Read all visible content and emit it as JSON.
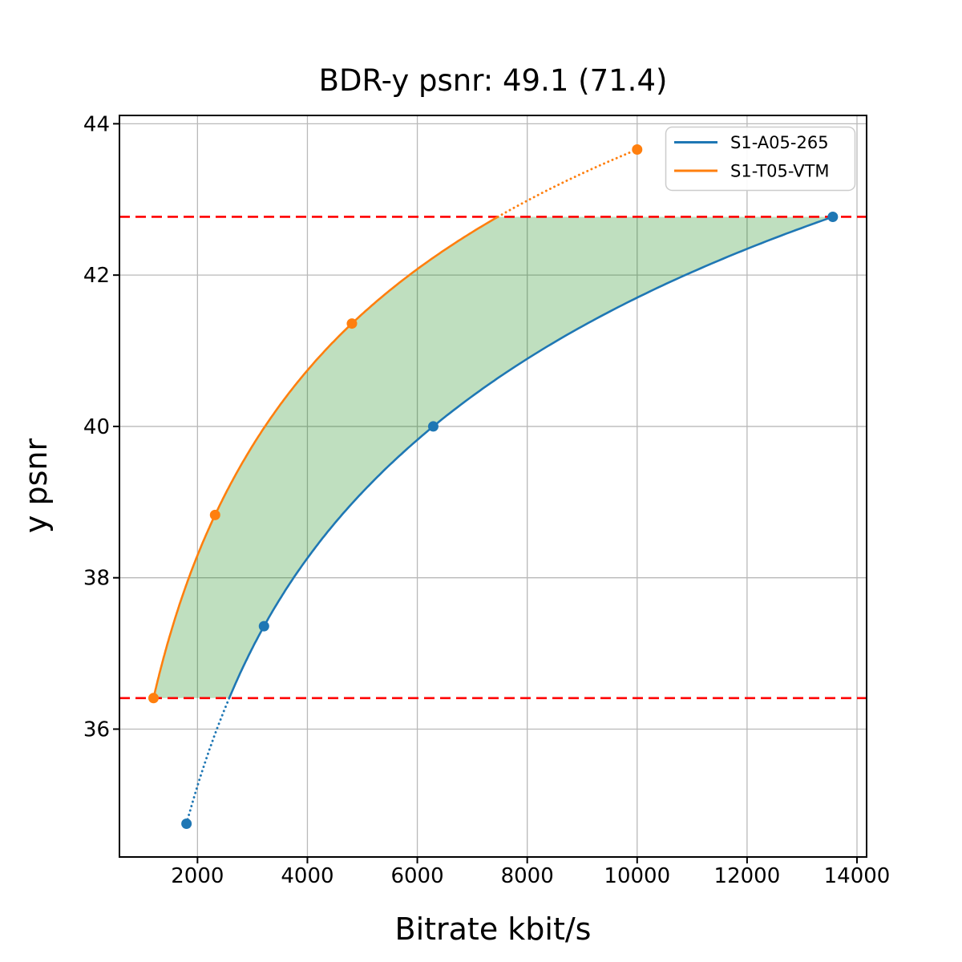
{
  "chart_data": {
    "type": "line",
    "title": "BDR-y psnr: 49.1 (71.4)",
    "xlabel": "Bitrate kbit/s",
    "ylabel": "y psnr",
    "xlim": [
      580,
      14175
    ],
    "ylim": [
      34.31,
      44.11
    ],
    "xticks": [
      2000,
      4000,
      6000,
      8000,
      10000,
      12000,
      14000
    ],
    "yticks": [
      36,
      38,
      40,
      42,
      44
    ],
    "grid": true,
    "grid_color": "#b9b9b9",
    "frame_color": "#000000",
    "interpolation": "pchip-log-x",
    "series": [
      {
        "name": "S1-A05-265",
        "color": "#1f77b4",
        "marker": "circle",
        "x": [
          1800,
          3210,
          6290,
          13560
        ],
        "y": [
          34.75,
          37.36,
          40.0,
          42.77
        ]
      },
      {
        "name": "S1-T05-VTM",
        "color": "#ff7f0e",
        "marker": "circle",
        "x": [
          1200,
          2320,
          4810,
          10000
        ],
        "y": [
          36.41,
          38.83,
          41.36,
          43.66
        ]
      }
    ],
    "overlap_region": {
      "lower_psnr": 36.41,
      "upper_psnr": 42.77,
      "line_color": "#ff0000",
      "line_style": "dashed",
      "fill_color": "#008000",
      "fill_opacity": 0.25
    },
    "legend": {
      "position": "upper right",
      "entries": [
        "S1-A05-265",
        "S1-T05-VTM"
      ]
    }
  }
}
